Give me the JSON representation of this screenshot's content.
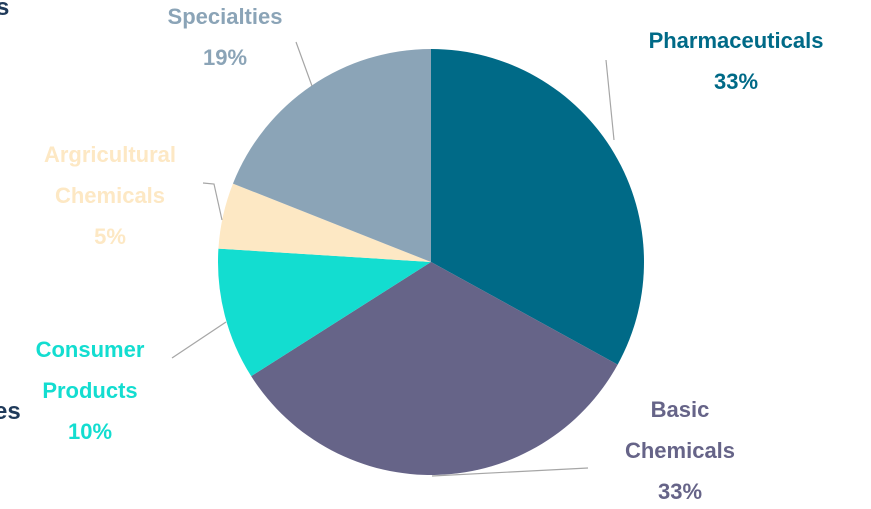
{
  "fragments": [
    "s",
    "es"
  ],
  "chart_data": {
    "type": "pie",
    "categories": [
      "Pharmaceuticals",
      "Basic Chemicals",
      "Consumer Products",
      "Argricultural Chemicals",
      "Specialties"
    ],
    "values": [
      33,
      33,
      10,
      5,
      19
    ],
    "value_labels": [
      "33%",
      "33%",
      "10%",
      "5%",
      "19%"
    ],
    "colors": [
      "#006a87",
      "#666488",
      "#13ddd0",
      "#fde8c4",
      "#8ba4b7"
    ]
  }
}
